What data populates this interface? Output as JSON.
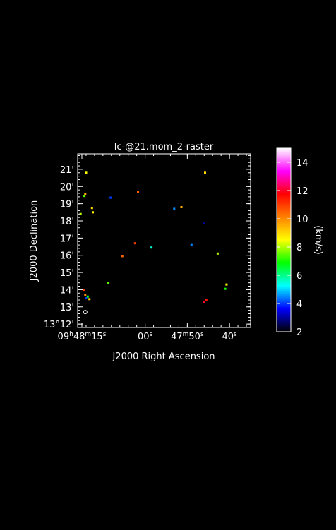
{
  "chart_data": {
    "type": "heatmap",
    "title": "lc-@21.mom_2-raster",
    "xlabel": "J2000 Right Ascension",
    "ylabel": "J2000 Declination",
    "x_ticks": [
      {
        "label": "09h48m15s",
        "ra_sec": 15
      },
      {
        "label": "00s",
        "ra_sec": 0
      },
      {
        "label": "47m50s",
        "ra_sec": -10
      },
      {
        "label": "40s",
        "ra_sec": -20
      }
    ],
    "y_ticks": [
      {
        "label": "13°12'",
        "dec_arcmin": 12
      },
      {
        "label": "13'",
        "dec_arcmin": 13
      },
      {
        "label": "14'",
        "dec_arcmin": 14
      },
      {
        "label": "15'",
        "dec_arcmin": 15
      },
      {
        "label": "16'",
        "dec_arcmin": 16
      },
      {
        "label": "17'",
        "dec_arcmin": 17
      },
      {
        "label": "18'",
        "dec_arcmin": 18
      },
      {
        "label": "19'",
        "dec_arcmin": 19
      },
      {
        "label": "20'",
        "dec_arcmin": 20
      },
      {
        "label": "21'",
        "dec_arcmin": 21
      }
    ],
    "xlim": [
      16,
      -25
    ],
    "ylim": [
      11.8,
      21.9
    ],
    "colorbar": {
      "label": "(km/s)",
      "min": 2,
      "max": 15,
      "ticks": [
        "2",
        "4",
        "6",
        "8",
        "10",
        "12",
        "14"
      ],
      "gradient": [
        "#000000",
        "#0000ff",
        "#00ffff",
        "#00ff00",
        "#ffff00",
        "#ff8000",
        "#ff0000",
        "#ff00ff",
        "#ffffff"
      ]
    },
    "beam": {
      "ra_sec": 14.2,
      "dec_arcmin": 12.7
    },
    "pixels": [
      {
        "ra_sec": 14.0,
        "dec_arcmin": 20.8,
        "value": 8.5
      },
      {
        "ra_sec": 14.2,
        "dec_arcmin": 19.55,
        "value": 9.5
      },
      {
        "ra_sec": 14.4,
        "dec_arcmin": 19.45,
        "value": 7.5
      },
      {
        "ra_sec": 12.6,
        "dec_arcmin": 18.75,
        "value": 9.0
      },
      {
        "ra_sec": 12.4,
        "dec_arcmin": 18.5,
        "value": 8.5
      },
      {
        "ra_sec": 15.3,
        "dec_arcmin": 18.4,
        "value": 8.0
      },
      {
        "ra_sec": 8.2,
        "dec_arcmin": 19.35,
        "value": 4.0
      },
      {
        "ra_sec": 1.7,
        "dec_arcmin": 19.7,
        "value": 10.5
      },
      {
        "ra_sec": -6.9,
        "dec_arcmin": 18.7,
        "value": 4.5
      },
      {
        "ra_sec": -8.6,
        "dec_arcmin": 18.8,
        "value": 9.5
      },
      {
        "ra_sec": -14.2,
        "dec_arcmin": 20.8,
        "value": 9.0
      },
      {
        "ra_sec": -13.9,
        "dec_arcmin": 17.85,
        "value": 3.0
      },
      {
        "ra_sec": 2.4,
        "dec_arcmin": 16.7,
        "value": 11.0
      },
      {
        "ra_sec": 5.4,
        "dec_arcmin": 15.95,
        "value": 10.5
      },
      {
        "ra_sec": -1.5,
        "dec_arcmin": 16.45,
        "value": 5.5
      },
      {
        "ra_sec": -11.0,
        "dec_arcmin": 16.6,
        "value": 4.5
      },
      {
        "ra_sec": -17.2,
        "dec_arcmin": 16.1,
        "value": 8.0
      },
      {
        "ra_sec": 8.7,
        "dec_arcmin": 14.4,
        "value": 7.5
      },
      {
        "ra_sec": 14.6,
        "dec_arcmin": 13.95,
        "value": 11.0
      },
      {
        "ra_sec": 14.2,
        "dec_arcmin": 13.7,
        "value": 10.0
      },
      {
        "ra_sec": 14.0,
        "dec_arcmin": 13.5,
        "value": 4.0
      },
      {
        "ra_sec": 13.6,
        "dec_arcmin": 13.6,
        "value": 6.5
      },
      {
        "ra_sec": 13.2,
        "dec_arcmin": 13.45,
        "value": 9.0
      },
      {
        "ra_sec": -14.5,
        "dec_arcmin": 13.4,
        "value": 11.5
      },
      {
        "ra_sec": -13.9,
        "dec_arcmin": 13.3,
        "value": 12.0
      },
      {
        "ra_sec": -19.3,
        "dec_arcmin": 14.3,
        "value": 8.5
      },
      {
        "ra_sec": -19.0,
        "dec_arcmin": 14.05,
        "value": 7.0
      }
    ]
  }
}
